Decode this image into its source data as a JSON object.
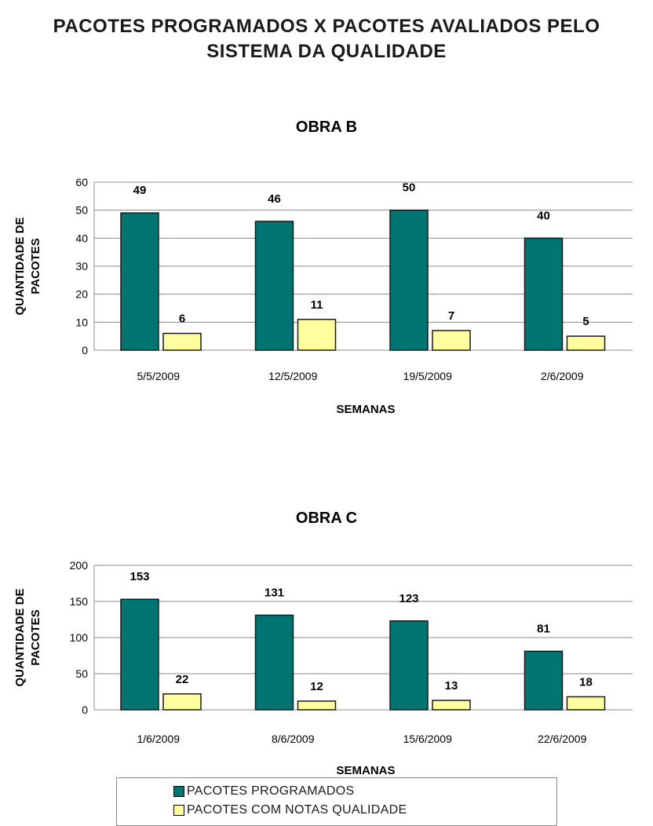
{
  "page": {
    "title_line1": "PACOTES PROGRAMADOS X PACOTES AVALIADOS PELO",
    "title_line2": "SISTEMA DA QUALIDADE"
  },
  "colors": {
    "programados": "#007470",
    "qualidade": "#ffffa0",
    "grid": "#8c8c8c"
  },
  "legend": {
    "items": [
      {
        "label": "PACOTES PROGRAMADOS",
        "color": "#007470"
      },
      {
        "label": "PACOTES COM NOTAS QUALIDADE",
        "color": "#ffffa0"
      }
    ]
  },
  "chart_data": [
    {
      "type": "bar",
      "title": "OBRA B",
      "xlabel": "SEMANAS",
      "ylabel": "QUANTIDADE DE PACOTES",
      "ylim": [
        0,
        60
      ],
      "yticks": [
        0,
        10,
        20,
        30,
        40,
        50,
        60
      ],
      "ytick_labels": [
        "0",
        "10",
        "20",
        "30",
        "40",
        "50",
        "60"
      ],
      "grid": true,
      "categories": [
        "5/5/2009",
        "12/5/2009",
        "19/5/2009",
        "2/6/2009"
      ],
      "series": [
        {
          "name": "PACOTES PROGRAMADOS",
          "values": [
            49,
            46,
            50,
            40
          ],
          "labels": [
            "49",
            "46",
            "50",
            "40"
          ]
        },
        {
          "name": "PACOTES COM NOTAS QUALIDADE",
          "values": [
            6,
            11,
            7,
            5
          ],
          "labels": [
            "6",
            "11",
            "7",
            "5"
          ]
        }
      ]
    },
    {
      "type": "bar",
      "title": "OBRA C",
      "xlabel": "SEMANAS",
      "ylabel": "QUANTIDADE DE PACOTES",
      "ylim": [
        0,
        200
      ],
      "yticks": [
        0,
        50,
        100,
        150,
        200
      ],
      "ytick_labels": [
        "0",
        "50",
        "100",
        "150",
        "200"
      ],
      "grid": true,
      "categories": [
        "1/6/2009",
        "8/6/2009",
        "15/6/2009",
        "22/6/2009"
      ],
      "series": [
        {
          "name": "PACOTES PROGRAMADOS",
          "values": [
            153,
            131,
            123,
            81
          ],
          "labels": [
            "153",
            "131",
            "123",
            "81"
          ]
        },
        {
          "name": "PACOTES COM NOTAS QUALIDADE",
          "values": [
            22,
            12,
            13,
            18
          ],
          "labels": [
            "22",
            "12",
            "13",
            "18"
          ]
        }
      ]
    }
  ]
}
